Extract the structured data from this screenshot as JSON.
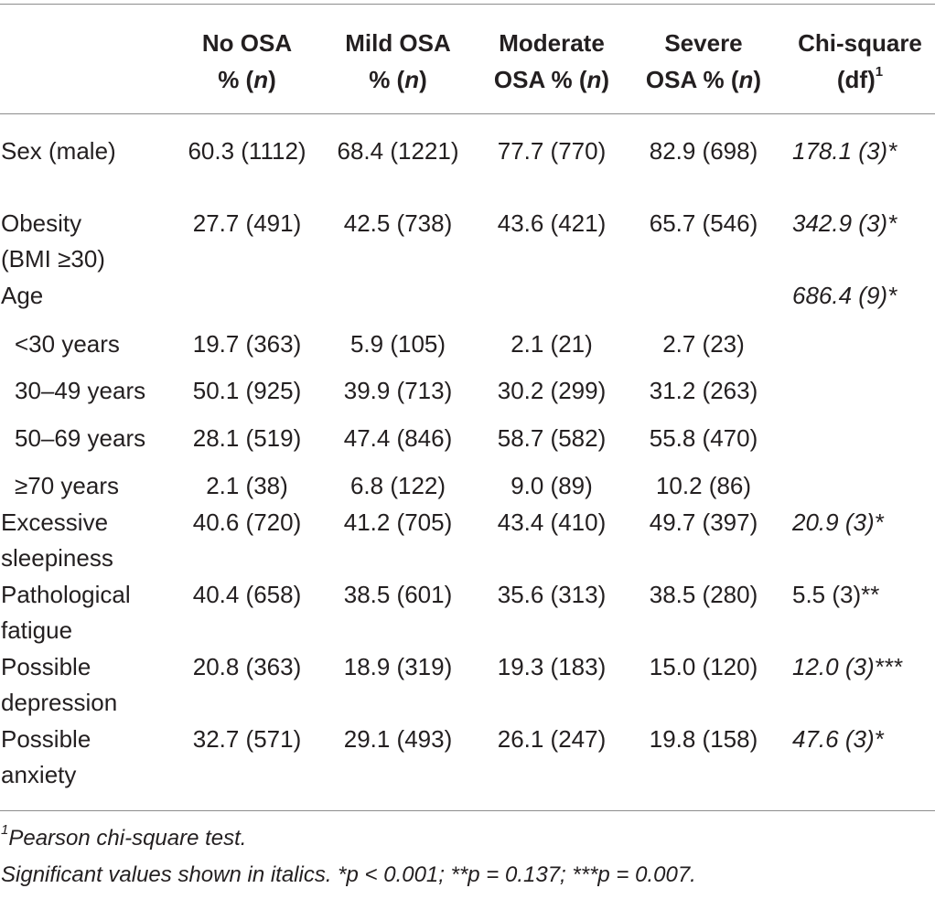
{
  "table": {
    "headers": {
      "no_osa": [
        "No OSA",
        "% (",
        "n",
        ")"
      ],
      "mild": [
        "Mild OSA",
        "% (",
        "n",
        ")"
      ],
      "moderate": [
        "Moderate",
        "OSA % (",
        "n",
        ")"
      ],
      "severe": [
        "Severe",
        "OSA % (",
        "n",
        ")"
      ],
      "chi": [
        "Chi-square",
        "(df)",
        "1"
      ]
    },
    "rows": [
      {
        "label": "Sex (male)",
        "no": "60.3 (1112)",
        "mild": "68.4 (1221)",
        "moderate": "77.7 (770)",
        "severe": "82.9 (698)",
        "chi": "178.1 (3)*"
      },
      {
        "label": "Obesity (BMI ≥30)",
        "no": "27.7 (491)",
        "mild": "42.5 (738)",
        "moderate": "43.6 (421)",
        "severe": "65.7 (546)",
        "chi": "342.9 (3)*"
      },
      {
        "label": "Age",
        "no": "",
        "mild": "",
        "moderate": "",
        "severe": "",
        "chi": "686.4 (9)*"
      },
      {
        "label": "<30 years",
        "no": "19.7 (363)",
        "mild": "5.9 (105)",
        "moderate": "2.1 (21)",
        "severe": "2.7 (23)",
        "chi": ""
      },
      {
        "label": "30–49 years",
        "no": "50.1 (925)",
        "mild": "39.9 (713)",
        "moderate": "30.2 (299)",
        "severe": "31.2 (263)",
        "chi": ""
      },
      {
        "label": "50–69 years",
        "no": "28.1 (519)",
        "mild": "47.4 (846)",
        "moderate": "58.7 (582)",
        "severe": "55.8 (470)",
        "chi": ""
      },
      {
        "label": "≥70 years",
        "no": "2.1 (38)",
        "mild": "6.8 (122)",
        "moderate": "9.0 (89)",
        "severe": "10.2 (86)",
        "chi": ""
      },
      {
        "label": "Excessive sleepiness",
        "no": "40.6 (720)",
        "mild": "41.2 (705)",
        "moderate": "43.4 (410)",
        "severe": "49.7 (397)",
        "chi": "20.9 (3)*"
      },
      {
        "label": "Pathological fatigue",
        "no": "40.4 (658)",
        "mild": "38.5 (601)",
        "moderate": "35.6 (313)",
        "severe": "38.5 (280)",
        "chi": "5.5 (3)**"
      },
      {
        "label": "Possible depression",
        "no": "20.8 (363)",
        "mild": "18.9 (319)",
        "moderate": "19.3 (183)",
        "severe": "15.0 (120)",
        "chi": "12.0 (3)***"
      },
      {
        "label": "Possible anxiety",
        "no": "32.7 (571)",
        "mild": "29.1 (493)",
        "moderate": "26.1 (247)",
        "severe": "19.8 (158)",
        "chi": "47.6 (3)*"
      }
    ],
    "footnotes": {
      "note1_mark": "1",
      "note1": "Pearson chi-square test.",
      "note2": "Significant values shown in italics. *p < 0.001; **p = 0.137; ***p = 0.007."
    }
  }
}
